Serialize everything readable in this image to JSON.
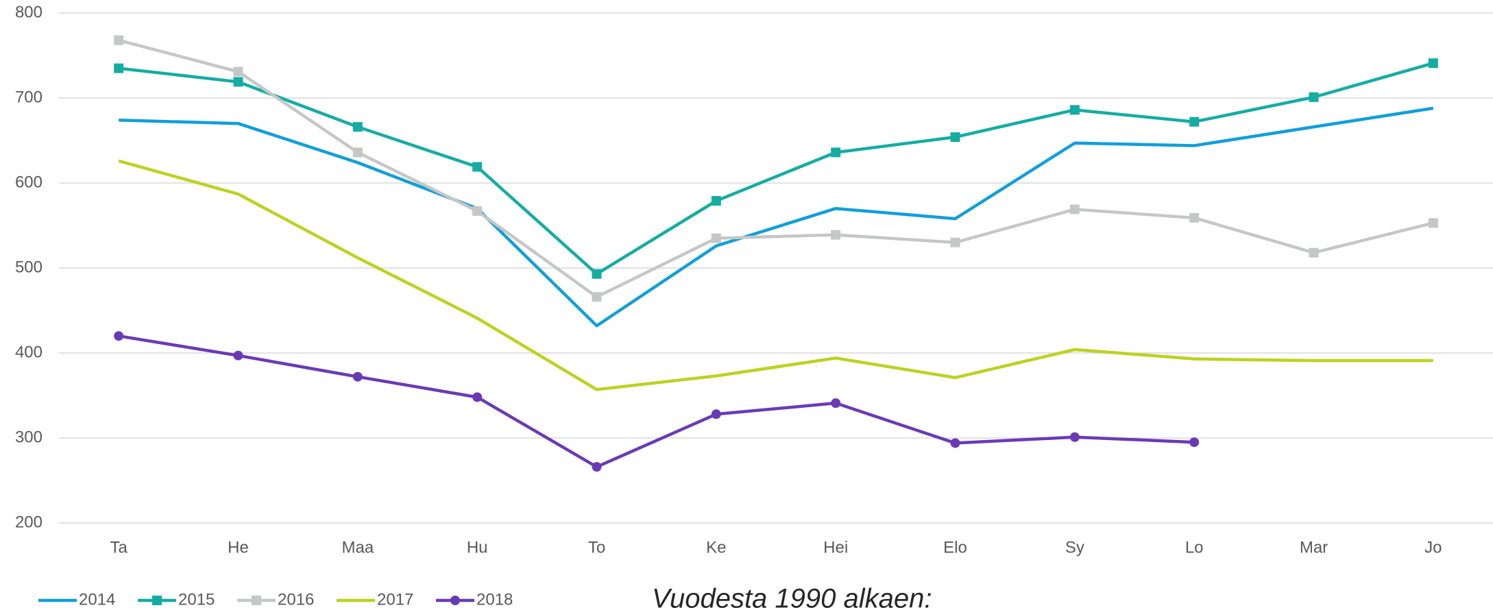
{
  "chart_data": {
    "type": "line",
    "categories": [
      "Ta",
      "He",
      "Maa",
      "Hu",
      "To",
      "Ke",
      "Hei",
      "Elo",
      "Sy",
      "Lo",
      "Mar",
      "Jo"
    ],
    "series": [
      {
        "name": "2014",
        "color": "#0f9fdb",
        "values": [
          674,
          670,
          624,
          570,
          432,
          526,
          570,
          558,
          647,
          644,
          666,
          688
        ]
      },
      {
        "name": "2015",
        "color": "#13ada2",
        "marker": "square",
        "values": [
          735,
          719,
          666,
          619,
          493,
          579,
          636,
          654,
          686,
          672,
          701,
          741
        ]
      },
      {
        "name": "2016",
        "color": "#c5c7c7",
        "marker": "square",
        "values": [
          768,
          731,
          636,
          567,
          466,
          535,
          539,
          530,
          569,
          559,
          518,
          553
        ]
      },
      {
        "name": "2017",
        "color": "#bad31e",
        "values": [
          626,
          587,
          512,
          441,
          357,
          373,
          394,
          371,
          404,
          393,
          391,
          391
        ]
      },
      {
        "name": "2018",
        "color": "#6a3ab6",
        "marker": "circle",
        "values": [
          420,
          397,
          372,
          348,
          266,
          328,
          341,
          294,
          301,
          295,
          null,
          null
        ]
      }
    ],
    "ylim": [
      200,
      800
    ],
    "yticks": [
      200,
      300,
      400,
      500,
      600,
      700,
      800
    ],
    "grid": true,
    "legend": "bottom-left",
    "annotation": "Vuodesta 1990 alkaen:"
  }
}
